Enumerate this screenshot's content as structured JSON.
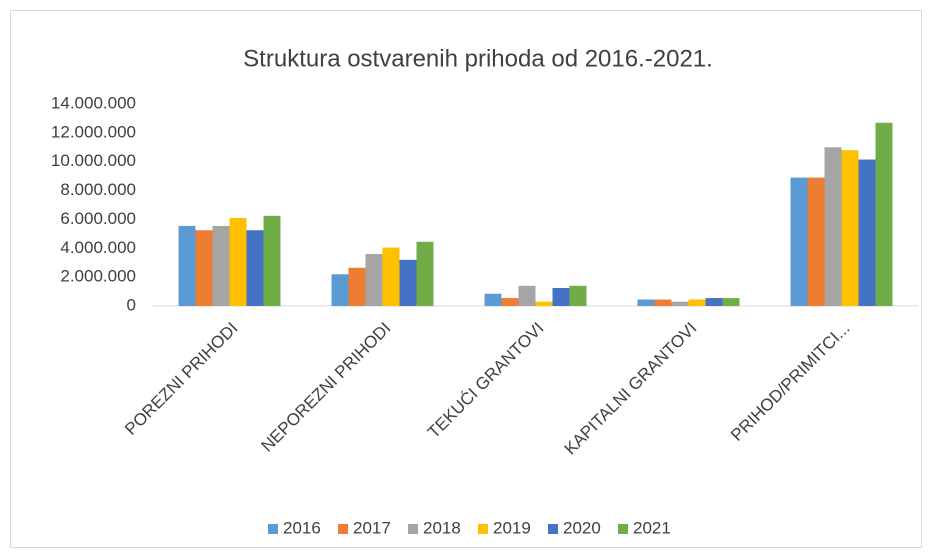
{
  "chart_data": {
    "type": "bar",
    "title": "Struktura  ostvarenih prihoda od 2016.-2021.",
    "categories": [
      "POREZNI PRIHODI",
      "NEPOREZNI PRIHODI",
      "TEKUĆI GRANTOVI",
      "KAPITALNI GRANTOVI",
      "PRIHOD/PRIMITCI..."
    ],
    "series": [
      {
        "name": "2016",
        "color": "#5b9bd5",
        "values": [
          5550000,
          2200000,
          850000,
          450000,
          8900000
        ]
      },
      {
        "name": "2017",
        "color": "#ed7d31",
        "values": [
          5250000,
          2650000,
          550000,
          450000,
          8900000
        ]
      },
      {
        "name": "2018",
        "color": "#a5a5a5",
        "values": [
          5550000,
          3600000,
          1400000,
          300000,
          11000000
        ]
      },
      {
        "name": "2019",
        "color": "#ffc000",
        "values": [
          6100000,
          4050000,
          300000,
          450000,
          10800000
        ]
      },
      {
        "name": "2020",
        "color": "#4472c4",
        "values": [
          5250000,
          3200000,
          1250000,
          550000,
          10150000
        ]
      },
      {
        "name": "2021",
        "color": "#70ad47",
        "values": [
          6250000,
          4450000,
          1400000,
          550000,
          12700000
        ]
      }
    ],
    "ylim": [
      0,
      14000000
    ],
    "yticks": [
      0,
      {
        "value": 2000000,
        "label": "2.000.000"
      },
      {
        "value": 4000000,
        "label": "4.000.000"
      },
      {
        "value": 6000000,
        "label": "6.000.000"
      },
      {
        "value": 8000000,
        "label": "8.000.000"
      },
      {
        "value": 10000000,
        "label": "10.000.000"
      },
      {
        "value": 12000000,
        "label": "12.000.000"
      },
      {
        "value": 14000000,
        "label": "14.000.000"
      }
    ],
    "grid": false,
    "legend": "bottom"
  }
}
